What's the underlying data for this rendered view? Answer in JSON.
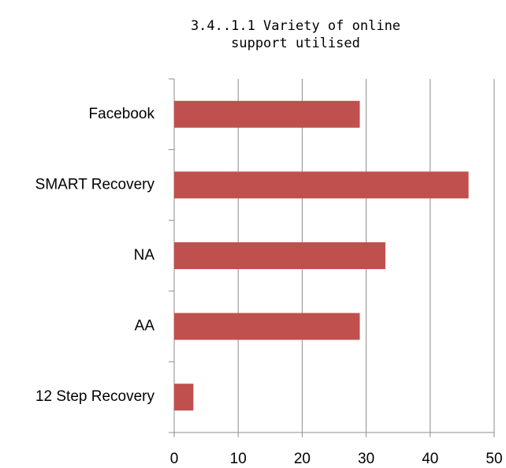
{
  "chart_data": {
    "type": "bar",
    "orientation": "horizontal",
    "title": "3.4..1.1 Variety of online support utilised",
    "categories": [
      "Facebook",
      "SMART Recovery",
      "NA",
      "AA",
      "12 Step Recovery"
    ],
    "values": [
      29,
      46,
      33,
      29,
      3
    ],
    "color": "#c0504d",
    "xlim": [
      0,
      50
    ],
    "xticks": [
      0,
      10,
      20,
      30,
      40,
      50
    ],
    "grid": true
  }
}
